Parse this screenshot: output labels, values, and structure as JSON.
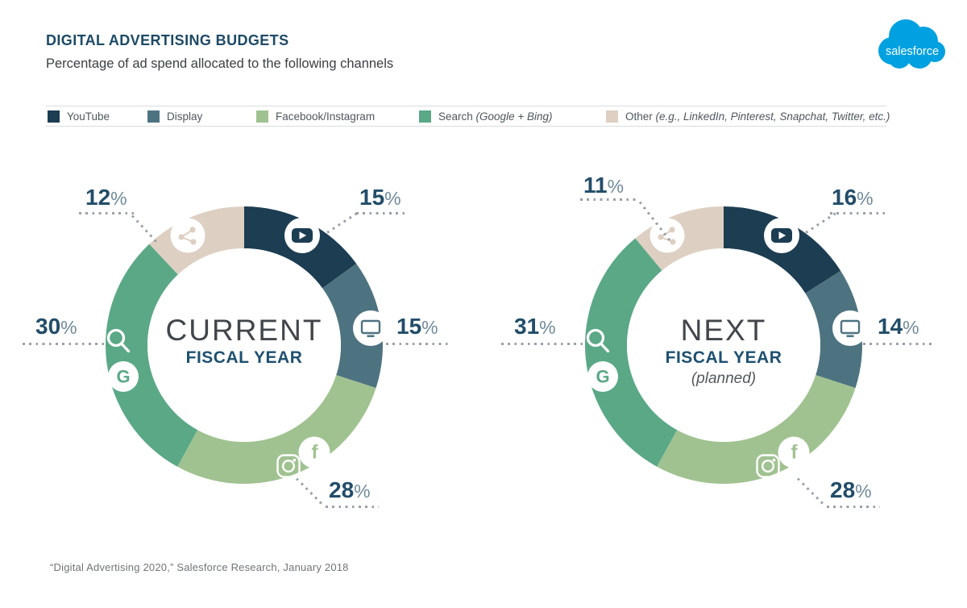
{
  "header": {
    "title": "DIGITAL ADVERTISING BUDGETS",
    "subtitle": "Percentage of ad spend allocated to the following channels",
    "logo_text": "salesforce",
    "brand_color": "#00A1E0"
  },
  "legend": {
    "items": [
      {
        "label": "YouTube",
        "detail": "",
        "color": "#1D3D52"
      },
      {
        "label": "Display",
        "detail": "",
        "color": "#4E7380"
      },
      {
        "label": "Facebook/Instagram",
        "detail": "",
        "color": "#A0C291"
      },
      {
        "label": "Search",
        "detail": "(Google + Bing)",
        "color": "#5AA886"
      },
      {
        "label": "Other",
        "detail": "(e.g., LinkedIn, Pinterest, Snapchat, Twitter, etc.)",
        "color": "#DDCFC2"
      }
    ]
  },
  "percent_suffix": "%",
  "chart_data": [
    {
      "type": "pie",
      "variant": "donut",
      "center_title": "CURRENT",
      "center_subtitle": "FISCAL YEAR",
      "center_note": "",
      "categories": [
        "YouTube",
        "Display",
        "Facebook/Instagram",
        "Search (Google + Bing)",
        "Other (e.g., LinkedIn, Pinterest, Snapchat, Twitter, etc.)"
      ],
      "values": [
        15,
        15,
        28,
        30,
        12
      ],
      "value_labels": [
        "15",
        "15",
        "28",
        "30",
        "12"
      ],
      "colors": [
        "#1D3D52",
        "#4E7380",
        "#A0C291",
        "#5AA886",
        "#DDCFC2"
      ],
      "icons": [
        [
          "youtube-play-icon"
        ],
        [
          "monitor-icon"
        ],
        [
          "instagram-icon",
          "facebook-icon"
        ],
        [
          "search-icon",
          "google-icon"
        ],
        [
          "share-icon"
        ]
      ],
      "start_angle_deg": 0,
      "direction": "clockwise",
      "donut_hole_ratio": 0.7,
      "legend_position": "top"
    },
    {
      "type": "pie",
      "variant": "donut",
      "center_title": "NEXT",
      "center_subtitle": "FISCAL YEAR",
      "center_note": "(planned)",
      "categories": [
        "YouTube",
        "Display",
        "Facebook/Instagram",
        "Search (Google + Bing)",
        "Other (e.g., LinkedIn, Pinterest, Snapchat, Twitter, etc.)"
      ],
      "values": [
        16,
        14,
        28,
        31,
        11
      ],
      "value_labels": [
        "16",
        "14",
        "28",
        "31",
        "11"
      ],
      "colors": [
        "#1D3D52",
        "#4E7380",
        "#A0C291",
        "#5AA886",
        "#DDCFC2"
      ],
      "icons": [
        [
          "youtube-play-icon"
        ],
        [
          "monitor-icon"
        ],
        [
          "instagram-icon",
          "facebook-icon"
        ],
        [
          "search-icon",
          "google-icon"
        ],
        [
          "share-icon"
        ]
      ],
      "start_angle_deg": 0,
      "direction": "clockwise",
      "donut_hole_ratio": 0.7,
      "legend_position": "top"
    }
  ],
  "footer": {
    "source": "“Digital Advertising 2020,” Salesforce Research, January 2018"
  }
}
